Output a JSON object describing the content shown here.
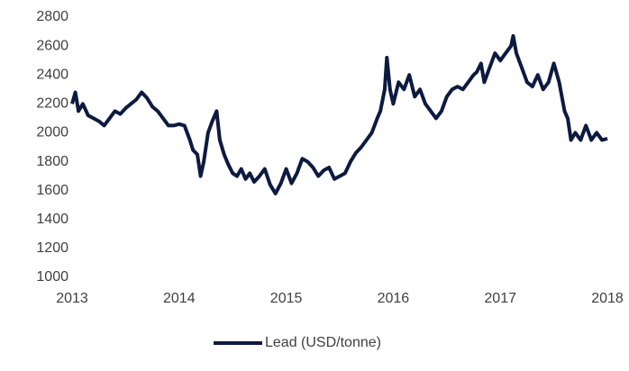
{
  "chart_data": {
    "type": "line",
    "x": [
      2013.0,
      2013.03,
      2013.06,
      2013.1,
      2013.15,
      2013.2,
      2013.25,
      2013.3,
      2013.35,
      2013.4,
      2013.45,
      2013.5,
      2013.55,
      2013.6,
      2013.65,
      2013.7,
      2013.75,
      2013.8,
      2013.85,
      2013.9,
      2013.95,
      2014.0,
      2014.05,
      2014.1,
      2014.13,
      2014.17,
      2014.2,
      2014.23,
      2014.27,
      2014.31,
      2014.35,
      2014.38,
      2014.42,
      2014.46,
      2014.5,
      2014.54,
      2014.58,
      2014.62,
      2014.66,
      2014.7,
      2014.75,
      2014.8,
      2014.85,
      2014.9,
      2014.95,
      2015.0,
      2015.05,
      2015.1,
      2015.15,
      2015.2,
      2015.25,
      2015.3,
      2015.35,
      2015.4,
      2015.45,
      2015.5,
      2015.55,
      2015.6,
      2015.65,
      2015.7,
      2015.75,
      2015.8,
      2015.85,
      2015.88,
      2015.92,
      2015.94,
      2015.97,
      2016.0,
      2016.05,
      2016.1,
      2016.15,
      2016.2,
      2016.25,
      2016.3,
      2016.35,
      2016.4,
      2016.45,
      2016.5,
      2016.55,
      2016.6,
      2016.65,
      2016.7,
      2016.75,
      2016.78,
      2016.82,
      2016.85,
      2016.9,
      2016.95,
      2017.0,
      2017.05,
      2017.1,
      2017.12,
      2017.15,
      2017.2,
      2017.25,
      2017.3,
      2017.35,
      2017.4,
      2017.45,
      2017.5,
      2017.55,
      2017.6,
      2017.63,
      2017.66,
      2017.7,
      2017.75,
      2017.8,
      2017.85,
      2017.9,
      2017.95,
      2018.0
    ],
    "series": [
      {
        "name": "Lead (USD/tonne)",
        "color": "#0d1a40",
        "values": [
          2200,
          2280,
          2150,
          2200,
          2120,
          2100,
          2080,
          2050,
          2100,
          2150,
          2130,
          2170,
          2200,
          2230,
          2280,
          2240,
          2180,
          2150,
          2100,
          2050,
          2050,
          2060,
          2050,
          1950,
          1880,
          1850,
          1700,
          1800,
          2000,
          2080,
          2150,
          1950,
          1850,
          1780,
          1720,
          1700,
          1750,
          1680,
          1720,
          1660,
          1700,
          1750,
          1640,
          1580,
          1650,
          1750,
          1650,
          1720,
          1820,
          1800,
          1760,
          1700,
          1740,
          1760,
          1680,
          1700,
          1720,
          1800,
          1860,
          1900,
          1950,
          2000,
          2100,
          2150,
          2300,
          2520,
          2300,
          2200,
          2350,
          2300,
          2400,
          2250,
          2300,
          2200,
          2150,
          2100,
          2150,
          2250,
          2300,
          2320,
          2300,
          2350,
          2400,
          2420,
          2480,
          2350,
          2450,
          2550,
          2500,
          2550,
          2600,
          2670,
          2550,
          2450,
          2350,
          2320,
          2400,
          2300,
          2350,
          2480,
          2350,
          2150,
          2100,
          1950,
          2000,
          1950,
          2050,
          1950,
          2000,
          1950,
          1960
        ]
      }
    ],
    "xlim": [
      2013,
      2018
    ],
    "xticks": [
      2013,
      2014,
      2015,
      2016,
      2017,
      2018
    ],
    "ylim": [
      1000,
      2800
    ],
    "yticks": [
      1000,
      1200,
      1400,
      1600,
      1800,
      2000,
      2200,
      2400,
      2600,
      2800
    ],
    "legend": "bottom"
  }
}
